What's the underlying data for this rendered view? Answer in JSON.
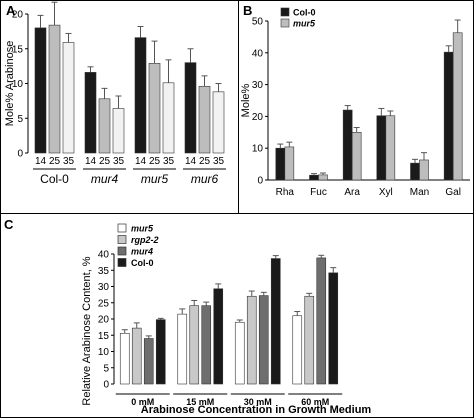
{
  "chart_data": [
    {
      "panel": "A",
      "type": "bar",
      "ylabel": "Mole% Arabinose",
      "ylim": [
        0,
        20
      ],
      "yticks": [
        0,
        5,
        10,
        15,
        20
      ],
      "sub_ticks": [
        "14",
        "25",
        "35"
      ],
      "groups": [
        {
          "label": "Col-0",
          "italic": false,
          "values": [
            18.0,
            18.4,
            15.9
          ],
          "errors": [
            1.8,
            3.3,
            1.3
          ]
        },
        {
          "label": "mur4",
          "italic": true,
          "values": [
            11.6,
            7.8,
            6.4
          ],
          "errors": [
            0.8,
            1.5,
            1.8
          ]
        },
        {
          "label": "mur5",
          "italic": true,
          "values": [
            16.6,
            12.9,
            10.1
          ],
          "errors": [
            1.6,
            3.2,
            3.3
          ]
        },
        {
          "label": "mur6",
          "italic": true,
          "values": [
            13.0,
            9.6,
            8.8
          ],
          "errors": [
            2.0,
            1.5,
            1.2
          ]
        }
      ],
      "colors": [
        "#1a1a1a",
        "#bdbdbd",
        "#f2f2f2"
      ]
    },
    {
      "panel": "B",
      "type": "bar",
      "ylabel": "Mole%",
      "ylim": [
        0,
        50
      ],
      "yticks": [
        0,
        10,
        20,
        30,
        40,
        50
      ],
      "categories": [
        "Rha",
        "Fuc",
        "Ara",
        "Xyl",
        "Man",
        "Gal"
      ],
      "series": [
        {
          "name": "Col-0",
          "color": "#1a1a1a",
          "values": [
            10.0,
            1.5,
            22.0,
            20.2,
            5.3,
            40.2
          ],
          "errors": [
            1.3,
            0.5,
            1.4,
            2.3,
            1.2,
            2.0
          ]
        },
        {
          "name": "mur5",
          "color": "#bdbdbd",
          "values": [
            10.4,
            1.6,
            15.0,
            20.2,
            6.3,
            46.3
          ],
          "errors": [
            1.5,
            0.6,
            1.5,
            1.5,
            2.3,
            4.0
          ]
        }
      ],
      "legend_position": "top-left"
    },
    {
      "panel": "C",
      "type": "bar",
      "ylabel": "Relative Arabinose Content, %",
      "xlabel": "Arabinose Concentration in Growth Medium",
      "ylim": [
        0,
        40
      ],
      "yticks": [
        0,
        5,
        10,
        15,
        20,
        25,
        30,
        35,
        40
      ],
      "categories": [
        "0 mM",
        "15 mM",
        "30 mM",
        "60 mM"
      ],
      "series": [
        {
          "name": "mur5",
          "color": "#ffffff",
          "values": [
            15.6,
            21.5,
            19.0,
            21.0
          ],
          "errors": [
            1.1,
            1.6,
            0.7,
            1.3
          ]
        },
        {
          "name": "rgp2-2",
          "color": "#c8c8c8",
          "values": [
            17.2,
            24.1,
            27.0,
            27.0
          ],
          "errors": [
            1.6,
            1.6,
            1.6,
            0.9
          ]
        },
        {
          "name": "mur4",
          "color": "#6e6e6e",
          "values": [
            14.0,
            24.1,
            27.2,
            38.8
          ],
          "errors": [
            0.8,
            1.1,
            1.0,
            0.8
          ]
        },
        {
          "name": "Col-0",
          "color": "#1a1a1a",
          "values": [
            19.8,
            29.3,
            38.6,
            34.2
          ],
          "errors": [
            0.4,
            1.5,
            0.9,
            1.6
          ]
        }
      ],
      "legend_position": "top-left"
    }
  ]
}
